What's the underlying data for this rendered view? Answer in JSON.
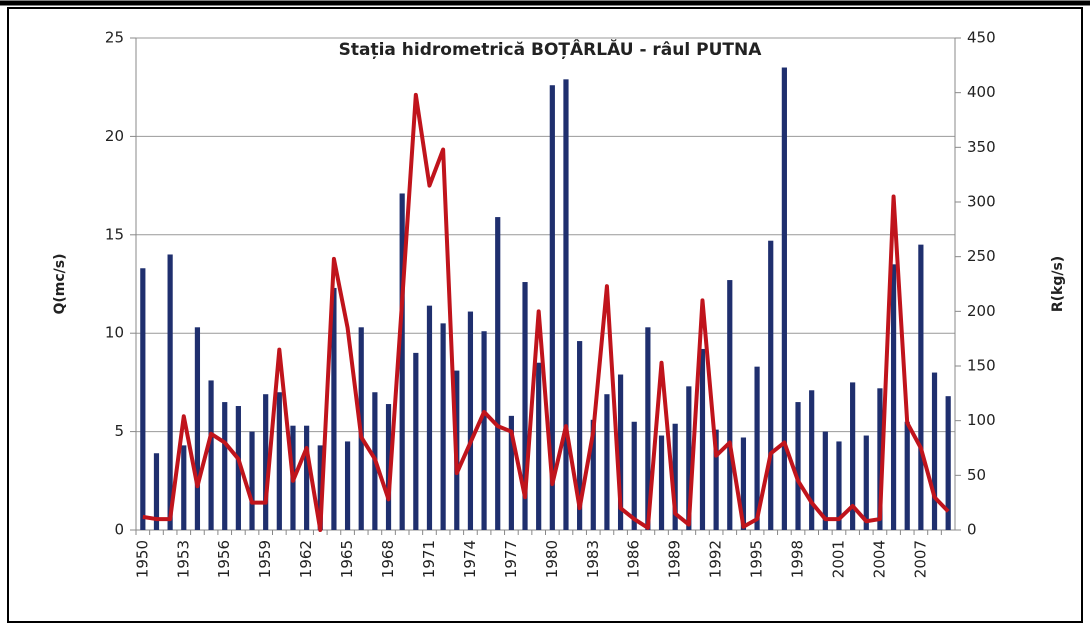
{
  "chart_data": {
    "type": "bar_line",
    "title": "Stația hidrometrică BOȚÂRLĂU - râul PUTNA",
    "ylabel": "Q(mc/s)",
    "y2label": "R(kg/s)",
    "categories": [
      "1950",
      null,
      null,
      "1953",
      null,
      null,
      "1956",
      null,
      null,
      "1959",
      null,
      null,
      "1962",
      null,
      null,
      "1965",
      null,
      null,
      "1968",
      null,
      null,
      "1971",
      null,
      null,
      "1974",
      null,
      null,
      "1977",
      null,
      null,
      "1980",
      null,
      null,
      "1983",
      null,
      null,
      "1986",
      null,
      null,
      "1989",
      null,
      null,
      "1992",
      null,
      null,
      "1995",
      null,
      null,
      "1998",
      null,
      null,
      "2001",
      null,
      null,
      "2004",
      null,
      null,
      "2007",
      null,
      null
    ],
    "series": [
      {
        "name": "Q",
        "type": "bar",
        "color": "#1f2f6e",
        "values": [
          13.3,
          3.9,
          14.0,
          4.3,
          10.3,
          7.6,
          6.5,
          6.3,
          5.0,
          6.9,
          7.0,
          5.3,
          5.3,
          4.3,
          12.3,
          4.5,
          10.3,
          7.0,
          6.4,
          17.1,
          9.0,
          11.4,
          10.5,
          8.1,
          11.1,
          10.1,
          15.9,
          5.8,
          12.6,
          8.5,
          22.6,
          22.9,
          9.6,
          5.6,
          6.9,
          7.9,
          5.5,
          10.3,
          4.8,
          5.4,
          7.3,
          9.2,
          5.1,
          12.7,
          4.7,
          8.3,
          14.7,
          23.5,
          6.5,
          7.1,
          5.0,
          4.5,
          7.5,
          4.8,
          7.2,
          13.5,
          5.5,
          14.5,
          8.0,
          6.8
        ]
      },
      {
        "name": "R",
        "type": "line",
        "axis": "y2",
        "color": "#c0141c",
        "values": [
          12,
          10,
          10,
          104,
          40,
          88,
          80,
          65,
          25,
          25,
          165,
          45,
          75,
          0,
          248,
          185,
          85,
          65,
          28,
          210,
          398,
          315,
          348,
          52,
          80,
          108,
          95,
          90,
          30,
          200,
          42,
          95,
          20,
          90,
          223,
          20,
          10,
          2,
          153,
          15,
          5,
          210,
          68,
          80,
          3,
          10,
          70,
          80,
          45,
          25,
          10,
          10,
          22,
          8,
          10,
          305,
          98,
          75,
          30,
          17
        ]
      }
    ],
    "ylim": [
      0,
      25
    ],
    "yticks": [
      0,
      5,
      10,
      15,
      20,
      25
    ],
    "y2lim": [
      0,
      450
    ],
    "y2ticks": [
      0,
      50,
      100,
      150,
      200,
      250,
      300,
      350,
      400,
      450
    ],
    "grid": true
  }
}
